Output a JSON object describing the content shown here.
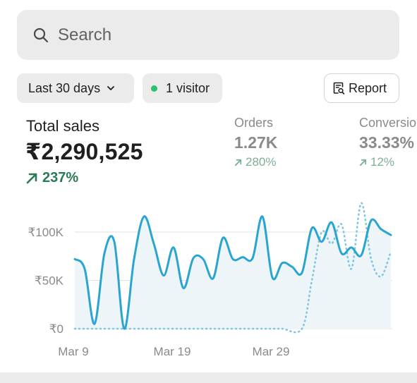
{
  "search": {
    "placeholder": "Search"
  },
  "filters": {
    "date_range": "Last 30 days",
    "visitors": "1 visitor",
    "report_label": "Report"
  },
  "metrics": {
    "total_sales": {
      "label": "Total sales",
      "value": "₹2,290,525",
      "change": "237%"
    },
    "orders": {
      "label": "Orders",
      "value": "1.27K",
      "change": "280%"
    },
    "conversion": {
      "label": "Conversio",
      "value": "33.33%",
      "change": "12%"
    }
  },
  "colors": {
    "current_line": "#2aa4d0",
    "previous_line": "#7fc7df",
    "trend_green": "#2a7a55",
    "visitor_dot": "#29c26e"
  },
  "chart_data": {
    "type": "line",
    "x_tick_labels": [
      "Mar 9",
      "Mar 19",
      "Mar 29"
    ],
    "y_tick_labels": [
      "₹100K",
      "₹50K",
      "₹0"
    ],
    "ylim": [
      0,
      100000
    ],
    "grid": true,
    "legend": "none",
    "series": [
      {
        "style": "solid",
        "x": [
          0,
          1,
          2,
          3,
          4,
          5,
          6,
          7,
          8,
          9,
          10,
          11,
          12,
          13,
          14,
          15,
          16,
          17,
          18,
          19,
          20,
          21,
          22,
          23,
          24,
          25,
          26,
          27,
          28,
          29,
          30,
          31,
          32
        ],
        "values": [
          72000,
          62000,
          5000,
          78000,
          90000,
          0,
          72000,
          116000,
          88000,
          55000,
          84000,
          42000,
          73000,
          72000,
          52000,
          94000,
          72000,
          74000,
          73000,
          116000,
          53000,
          68000,
          64000,
          58000,
          104000,
          90000,
          110000,
          78000,
          84000,
          76000,
          112000,
          103000,
          97000
        ]
      },
      {
        "style": "dotted",
        "x": [
          0,
          5,
          10,
          15,
          20,
          21,
          23,
          24,
          25,
          26,
          27,
          28,
          29,
          30,
          31,
          32
        ],
        "values": [
          0,
          0,
          0,
          0,
          0,
          0,
          0,
          50000,
          100000,
          88000,
          108000,
          62000,
          130000,
          72000,
          54000,
          80000
        ]
      }
    ]
  }
}
